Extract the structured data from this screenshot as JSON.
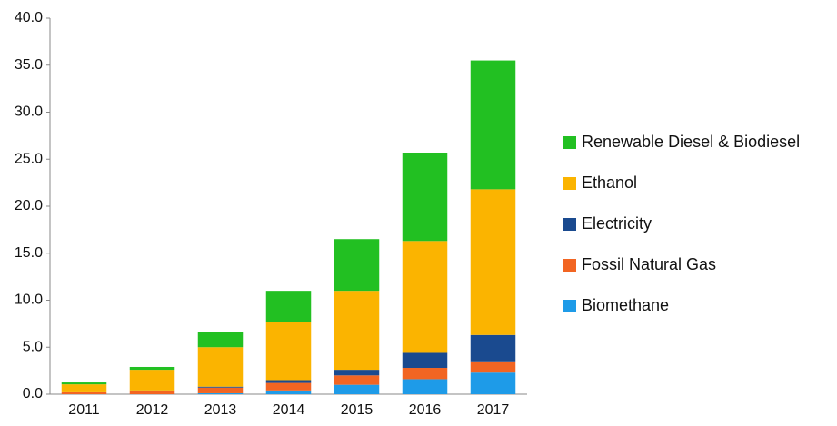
{
  "chart_data": {
    "type": "stacked_bar",
    "categories": [
      "2011",
      "2012",
      "2013",
      "2014",
      "2015",
      "2016",
      "2017"
    ],
    "series": [
      {
        "name": "Biomethane",
        "color": "#1e9be8",
        "values": [
          0,
          0,
          0.1,
          0.4,
          1.0,
          1.6,
          2.3
        ]
      },
      {
        "name": "Fossil Natural Gas",
        "color": "#f26522",
        "values": [
          0.2,
          0.3,
          0.6,
          0.8,
          1.0,
          1.2,
          1.2
        ]
      },
      {
        "name": "Electricity",
        "color": "#1a4a8f",
        "values": [
          0,
          0.1,
          0.1,
          0.3,
          0.6,
          1.6,
          2.8
        ]
      },
      {
        "name": "Ethanol",
        "color": "#fbb400",
        "values": [
          0.85,
          2.2,
          4.2,
          6.2,
          8.4,
          11.9,
          15.5
        ]
      },
      {
        "name": "Renewable Diesel & Biodiesel",
        "color": "#22c022",
        "values": [
          0.2,
          0.3,
          1.6,
          3.3,
          5.5,
          9.4,
          13.7
        ]
      }
    ],
    "ylim": [
      0,
      40
    ],
    "yticks": [
      {
        "value": 0,
        "label": "0.0"
      },
      {
        "value": 5,
        "label": "5.0"
      },
      {
        "value": 10,
        "label": "10.0"
      },
      {
        "value": 15,
        "label": "15.0"
      },
      {
        "value": 20,
        "label": "20.0"
      },
      {
        "value": 25,
        "label": "25.0"
      },
      {
        "value": 30,
        "label": "30.0"
      },
      {
        "value": 35,
        "label": "35.0"
      },
      {
        "value": 40,
        "label": "40.0"
      }
    ],
    "grid": false,
    "legend": "right"
  }
}
